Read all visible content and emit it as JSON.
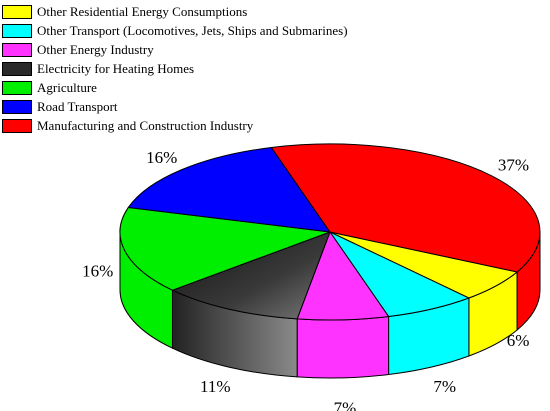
{
  "chart_data": {
    "type": "pie",
    "style": "3d",
    "slices": [
      {
        "label": "Other Residential Energy Consumptions",
        "value": 6,
        "value_label": "6%",
        "color": "#ffff00"
      },
      {
        "label": "Other Transport (Locomotives, Jets, Ships and Submarines)",
        "value": 7,
        "value_label": "7%",
        "color": "#00ffff"
      },
      {
        "label": "Other Energy Industry",
        "value": 7,
        "value_label": "7%",
        "color": "#ff33ff"
      },
      {
        "label": "Electricity for Heating Homes",
        "value": 11,
        "value_label": "11%",
        "color": "#2a2a2a"
      },
      {
        "label": "Agriculture",
        "value": 16,
        "value_label": "16%",
        "color": "#00ee00"
      },
      {
        "label": "Road Transport",
        "value": 16,
        "value_label": "16%",
        "color": "#0000ff"
      },
      {
        "label": "Manufacturing and Construction Industry",
        "value": 37,
        "value_label": "37%",
        "color": "#ff0000"
      }
    ],
    "legend_position": "top-left"
  }
}
